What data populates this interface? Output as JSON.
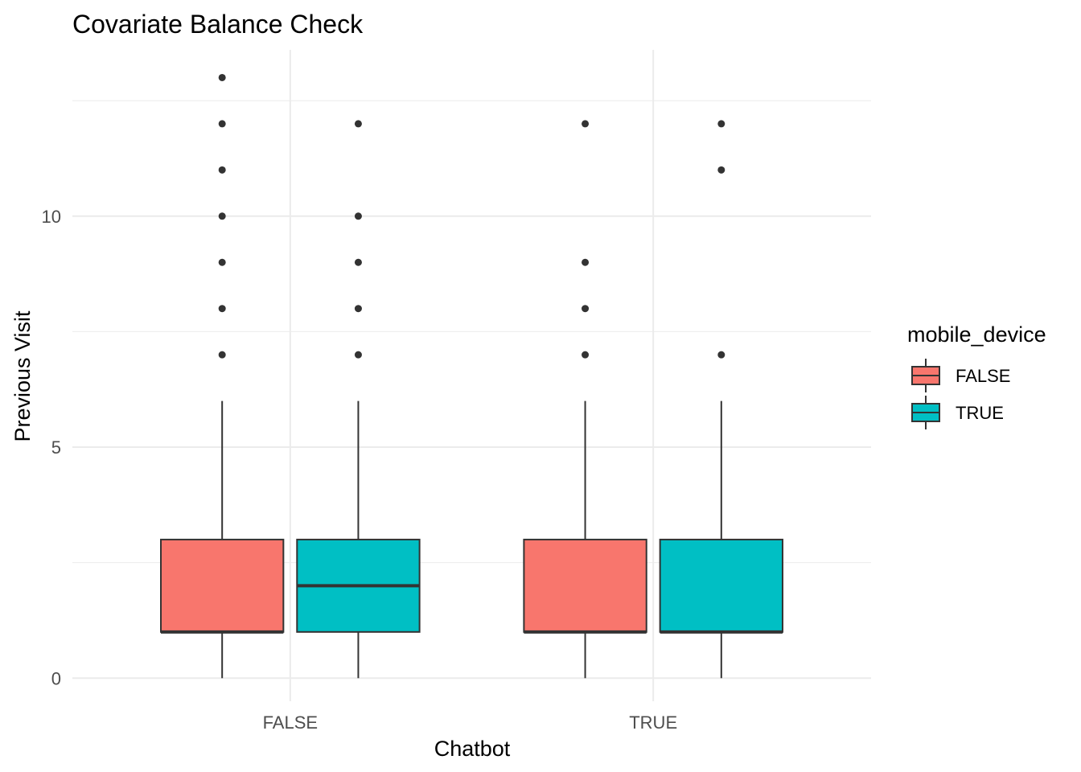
{
  "chart_data": {
    "type": "boxplot",
    "title": "Covariate Balance Check",
    "xlabel": "Chatbot",
    "ylabel": "Previous Visit",
    "ylim": [
      -0.5,
      13.6
    ],
    "y_ticks": [
      0,
      5,
      10
    ],
    "y_tick_labels": [
      "0",
      "5",
      "10"
    ],
    "categories": [
      "FALSE",
      "TRUE"
    ],
    "grid": true,
    "legend": {
      "title": "mobile_device",
      "position": "right",
      "entries": [
        {
          "label": "FALSE",
          "color": "#F8766D"
        },
        {
          "label": "TRUE",
          "color": "#00BFC4"
        }
      ]
    },
    "series": [
      {
        "name": "FALSE",
        "color": "#F8766D",
        "boxes": [
          {
            "category": "FALSE",
            "whisker_low": 0,
            "q1": 1,
            "median": 1,
            "q3": 3,
            "whisker_high": 6,
            "outliers": [
              7,
              8,
              9,
              10,
              11,
              12,
              13
            ]
          },
          {
            "category": "TRUE",
            "whisker_low": 0,
            "q1": 1,
            "median": 1,
            "q3": 3,
            "whisker_high": 6,
            "outliers": [
              7,
              8,
              9,
              12
            ]
          }
        ]
      },
      {
        "name": "TRUE",
        "color": "#00BFC4",
        "boxes": [
          {
            "category": "FALSE",
            "whisker_low": 0,
            "q1": 1,
            "median": 2,
            "q3": 3,
            "whisker_high": 6,
            "outliers": [
              7,
              8,
              9,
              10,
              12
            ]
          },
          {
            "category": "TRUE",
            "whisker_low": 0,
            "q1": 1,
            "median": 1,
            "q3": 3,
            "whisker_high": 6,
            "outliers": [
              7,
              11,
              12
            ]
          }
        ]
      }
    ],
    "colors": {
      "grid": "#EBEBEB",
      "outline": "#333333",
      "tick_text": "#4D4D4D",
      "text": "#000000"
    }
  }
}
